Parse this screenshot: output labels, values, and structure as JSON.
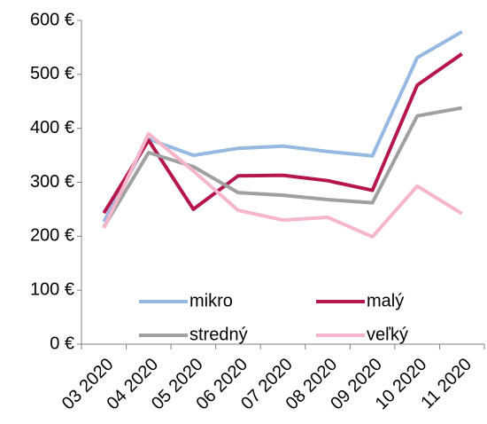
{
  "chart_data": {
    "type": "line",
    "categories": [
      "03 2020",
      "04 2020",
      "05 2020",
      "06 2020",
      "07 2020",
      "08 2020",
      "09 2020",
      "10 2020",
      "11 2020"
    ],
    "series": [
      {
        "name": "mikro",
        "color": "#95b9e0",
        "values": [
          227,
          380,
          350,
          363,
          367,
          357,
          349,
          531,
          579
        ]
      },
      {
        "name": "malý",
        "color": "#b5174b",
        "values": [
          243,
          378,
          250,
          312,
          313,
          303,
          285,
          480,
          538
        ]
      },
      {
        "name": "stredný",
        "color": "#a0a0a0",
        "values": [
          217,
          355,
          329,
          281,
          276,
          268,
          262,
          423,
          438
        ]
      },
      {
        "name": "veľký",
        "color": "#f4b6c8",
        "values": [
          215,
          390,
          321,
          248,
          230,
          235,
          199,
          293,
          242
        ]
      }
    ],
    "ylim": [
      0,
      600
    ],
    "yticks": [
      {
        "value": 0,
        "label": "0 €"
      },
      {
        "value": 100,
        "label": "100 €"
      },
      {
        "value": 200,
        "label": "200 €"
      },
      {
        "value": 300,
        "label": "300 €"
      },
      {
        "value": 400,
        "label": "400 €"
      },
      {
        "value": 500,
        "label": "500 €"
      },
      {
        "value": 600,
        "label": "600 €"
      }
    ]
  }
}
